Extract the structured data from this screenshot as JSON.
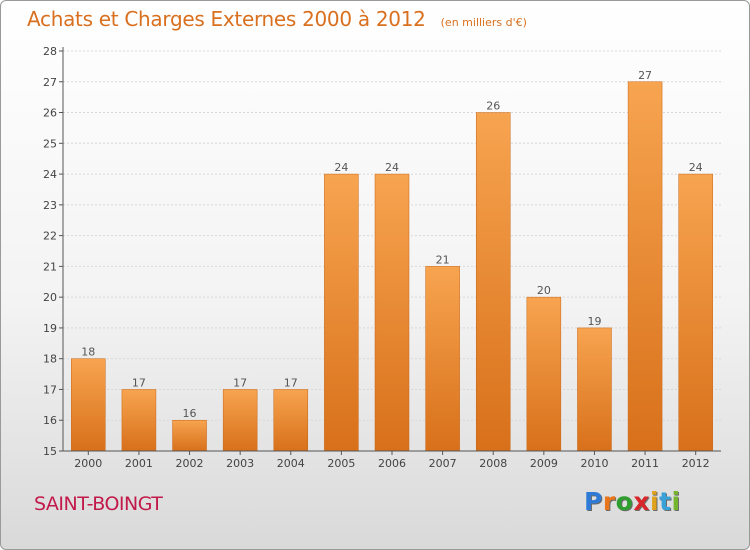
{
  "header": {
    "title": "Achats et Charges Externes 2000 à 2012",
    "unit_note": "(en milliers d'€)"
  },
  "footer": {
    "commune": "SAINT-BOINGT",
    "logo_letters": [
      "P",
      "r",
      "o",
      "x",
      "i",
      "t",
      "i"
    ],
    "logo_colors": [
      "#2e7ad6",
      "#e8741c",
      "#2e9e2e",
      "#d8262a",
      "#e0a21b",
      "#3aa0d8",
      "#74b72e"
    ]
  },
  "chart_data": {
    "type": "bar",
    "title": "Achats et Charges Externes 2000 à 2012",
    "subtitle": "(en milliers d'€)",
    "categories": [
      "2000",
      "2001",
      "2002",
      "2003",
      "2004",
      "2005",
      "2006",
      "2007",
      "2008",
      "2009",
      "2010",
      "2011",
      "2012"
    ],
    "values": [
      18,
      17,
      16,
      17,
      17,
      24,
      24,
      21,
      26,
      20,
      19,
      27,
      24
    ],
    "labels": [
      "18",
      "17",
      "16",
      "17",
      "17",
      "24",
      "24",
      "21",
      "26",
      "20",
      "19",
      "27",
      "24"
    ],
    "ylim": [
      15,
      28
    ],
    "yticks": [
      "15",
      "16",
      "17",
      "18",
      "19",
      "20",
      "21",
      "22",
      "23",
      "24",
      "25",
      "26",
      "27",
      "28"
    ],
    "grid": true,
    "bar_color_top": "#f7a450",
    "bar_color_bottom": "#d8701a",
    "label_color": "#555555"
  }
}
